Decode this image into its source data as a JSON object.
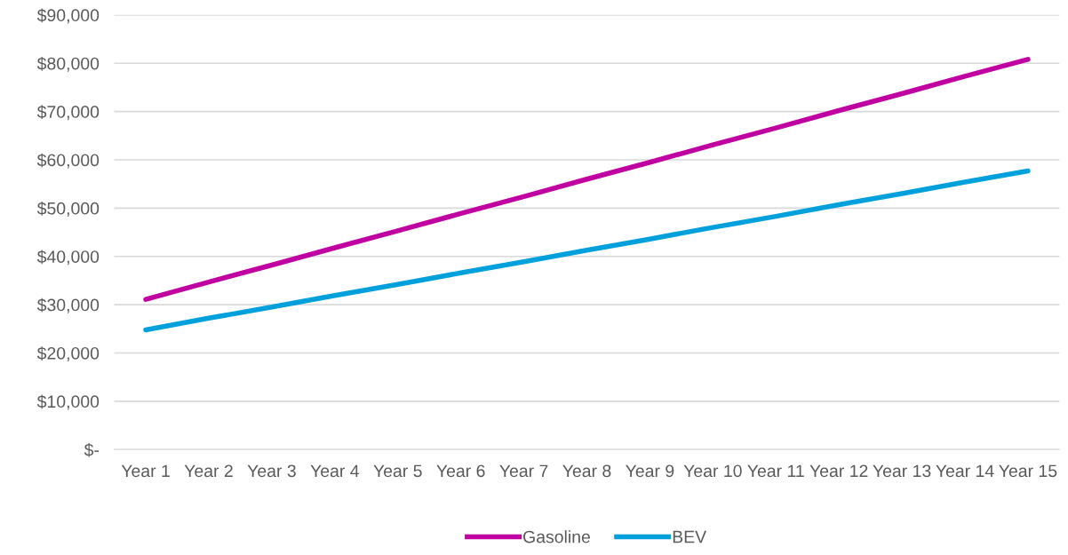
{
  "chart_data": {
    "type": "line",
    "categories": [
      "Year 1",
      "Year 2",
      "Year 3",
      "Year 4",
      "Year 5",
      "Year 6",
      "Year 7",
      "Year 8",
      "Year 9",
      "Year 10",
      "Year 11",
      "Year 12",
      "Year 13",
      "Year 14",
      "Year 15"
    ],
    "series": [
      {
        "name": "Gasoline",
        "color": "#c000a0",
        "values": [
          31100,
          34700,
          38200,
          41800,
          45300,
          48900,
          52400,
          56000,
          59500,
          63100,
          66600,
          70200,
          73700,
          77300,
          80800
        ]
      },
      {
        "name": "BEV",
        "color": "#00a0dc",
        "values": [
          24800,
          27200,
          29500,
          31900,
          34200,
          36600,
          38900,
          41300,
          43600,
          46000,
          48300,
          50700,
          53000,
          55400,
          57700
        ]
      }
    ],
    "ylim": [
      0,
      90000
    ],
    "yticks": [
      {
        "value": 0,
        "label": "$-"
      },
      {
        "value": 10000,
        "label": "$10,000"
      },
      {
        "value": 20000,
        "label": "$20,000"
      },
      {
        "value": 30000,
        "label": "$30,000"
      },
      {
        "value": 40000,
        "label": "$40,000"
      },
      {
        "value": 50000,
        "label": "$50,000"
      },
      {
        "value": 60000,
        "label": "$60,000"
      },
      {
        "value": 70000,
        "label": "$70,000"
      },
      {
        "value": 80000,
        "label": "$80,000"
      },
      {
        "value": 90000,
        "label": "$90,000"
      }
    ],
    "grid": "y",
    "legend": "bottom",
    "marker": "none",
    "line_style": "solid"
  }
}
